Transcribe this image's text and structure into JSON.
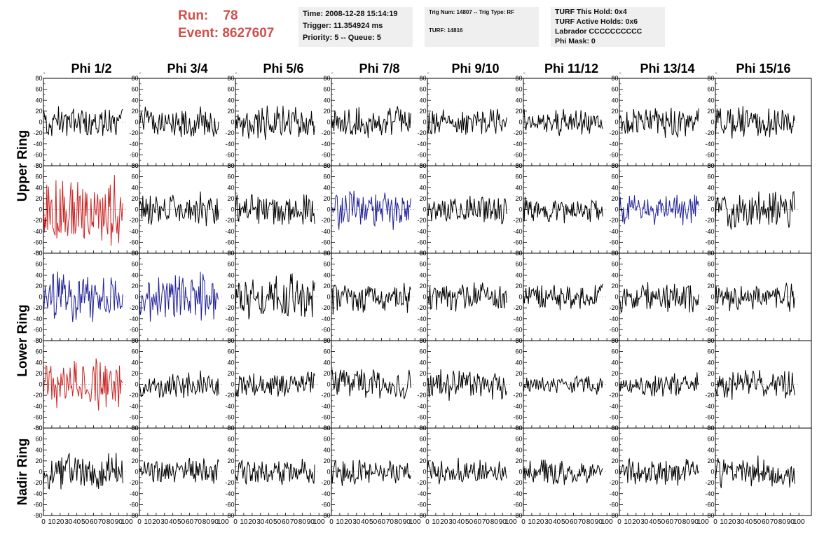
{
  "header": {
    "run_label": "Run:",
    "run_value": "78",
    "event_label": "Event:",
    "event_value": "8627607"
  },
  "time_box": {
    "time": "Time: 2008-12-28 15:14:19",
    "trigger": "Trigger: 11.354924 ms",
    "priority": "Priority: 5 -- Queue: 5"
  },
  "trig_box": {
    "trig": "Trig Num: 14807 -- Trig Type: RF",
    "turf": "TURF: 14816"
  },
  "turf_box": {
    "this_hold": "TURF This Hold: 0x4",
    "active_holds": "TURF Active Holds: 0x6",
    "labrador": "Labrador CCCCCCCCCC",
    "phi_mask": "Phi Mask: 0"
  },
  "chart_data": {
    "type": "line",
    "columns": [
      "Phi 1/2",
      "Phi 3/4",
      "Phi 5/6",
      "Phi 7/8",
      "Phi 9/10",
      "Phi 11/12",
      "Phi 13/14",
      "Phi 15/16"
    ],
    "row_groups": [
      {
        "label": "Upper Ring",
        "rows": [
          0,
          1
        ]
      },
      {
        "label": "Lower Ring",
        "rows": [
          2,
          3
        ]
      },
      {
        "label": "Nadir Ring",
        "rows": [
          4
        ]
      }
    ],
    "rows": 5,
    "xlim": [
      0,
      100
    ],
    "xticks": [
      0,
      10,
      20,
      30,
      40,
      50,
      60,
      70,
      80,
      90,
      100
    ],
    "ylim": [
      -80,
      80
    ],
    "yticks": [
      -80,
      -60,
      -40,
      -20,
      0,
      20,
      40,
      60,
      80
    ],
    "samples": 96,
    "colors": {
      "normal": "#000000",
      "red": "#cc2222",
      "blue": "#22229a"
    },
    "highlight": [
      {
        "row": 1,
        "col": 0,
        "color": "red"
      },
      {
        "row": 1,
        "col": 3,
        "color": "blue"
      },
      {
        "row": 1,
        "col": 6,
        "color": "blue"
      },
      {
        "row": 2,
        "col": 0,
        "color": "blue"
      },
      {
        "row": 2,
        "col": 1,
        "color": "blue"
      },
      {
        "row": 3,
        "col": 0,
        "color": "red"
      }
    ],
    "amplitudes": [
      [
        14,
        14,
        16,
        14,
        12,
        13,
        14,
        15
      ],
      [
        32,
        16,
        15,
        20,
        13,
        12,
        14,
        18
      ],
      [
        22,
        22,
        20,
        15,
        14,
        12,
        14,
        13
      ],
      [
        24,
        12,
        13,
        15,
        14,
        9,
        11,
        14
      ],
      [
        17,
        12,
        12,
        12,
        12,
        12,
        12,
        14
      ]
    ]
  }
}
